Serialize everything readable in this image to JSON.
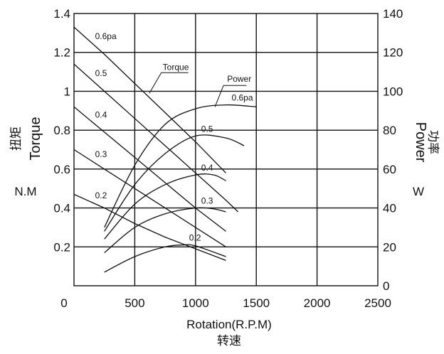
{
  "chart_data": {
    "type": "line",
    "x_axis": {
      "label": "Rotation(R.P.M)",
      "label_cn": "转速",
      "range": [
        0,
        2500
      ],
      "ticks": [
        0,
        500,
        1000,
        1500,
        2000,
        2500
      ]
    },
    "y_axis_left": {
      "label": "Torque",
      "label_cn": "扭矩",
      "unit": "N.M",
      "range": [
        0,
        1.4
      ],
      "ticks": [
        "0",
        "0.2",
        "0.4",
        "0.6",
        "0.8",
        "1",
        "1.2",
        "1.4"
      ]
    },
    "y_axis_right": {
      "label": "Power",
      "label_cn": "功率",
      "unit": "W",
      "range": [
        0,
        140
      ],
      "ticks": [
        "0",
        "20",
        "40",
        "60",
        "80",
        "100",
        "120",
        "140"
      ]
    },
    "grid": true,
    "torque_series": [
      {
        "label": "0.6pa",
        "axis": "left",
        "x": [
          0,
          250,
          500,
          750,
          1000,
          1250
        ],
        "y": [
          1.33,
          1.19,
          1.04,
          0.89,
          0.74,
          0.58
        ]
      },
      {
        "label": "0.5",
        "axis": "left",
        "x": [
          0,
          250,
          500,
          750,
          1000,
          1250,
          1350
        ],
        "y": [
          1.14,
          1.0,
          0.86,
          0.72,
          0.58,
          0.44,
          0.38
        ]
      },
      {
        "label": "0.4",
        "axis": "left",
        "x": [
          0,
          250,
          500,
          750,
          1000,
          1250
        ],
        "y": [
          0.92,
          0.79,
          0.66,
          0.53,
          0.4,
          0.28
        ]
      },
      {
        "label": "0.3",
        "axis": "left",
        "x": [
          0,
          250,
          500,
          750,
          1000,
          1250
        ],
        "y": [
          0.7,
          0.6,
          0.5,
          0.4,
          0.3,
          0.2
        ]
      },
      {
        "label": "0.2",
        "axis": "left",
        "x": [
          0,
          250,
          500,
          750,
          1000,
          1250
        ],
        "y": [
          0.47,
          0.4,
          0.32,
          0.25,
          0.19,
          0.13
        ]
      }
    ],
    "power_series": [
      {
        "label": "0.6pa",
        "axis": "right",
        "x": [
          250,
          500,
          750,
          1000,
          1250,
          1500
        ],
        "y": [
          30,
          62,
          83,
          91,
          93,
          92
        ]
      },
      {
        "label": "0.5",
        "axis": "right",
        "x": [
          250,
          500,
          750,
          1000,
          1250,
          1400
        ],
        "y": [
          28,
          52,
          68,
          77,
          76,
          72
        ]
      },
      {
        "label": "0.4",
        "axis": "right",
        "x": [
          250,
          500,
          750,
          1000,
          1150,
          1250
        ],
        "y": [
          24,
          42,
          52,
          57,
          57,
          54
        ]
      },
      {
        "label": "0.3",
        "axis": "right",
        "x": [
          250,
          500,
          750,
          1000,
          1150,
          1250
        ],
        "y": [
          17,
          30,
          37,
          40,
          39.5,
          38
        ]
      },
      {
        "label": "0.2",
        "axis": "right",
        "x": [
          250,
          500,
          750,
          900,
          1000,
          1250
        ],
        "y": [
          7,
          15,
          20,
          21,
          20.5,
          15
        ]
      }
    ],
    "legend_annotations": [
      {
        "text": "Torque",
        "points_to": "torque_series"
      },
      {
        "text": "Power",
        "points_to": "power_series"
      }
    ]
  }
}
